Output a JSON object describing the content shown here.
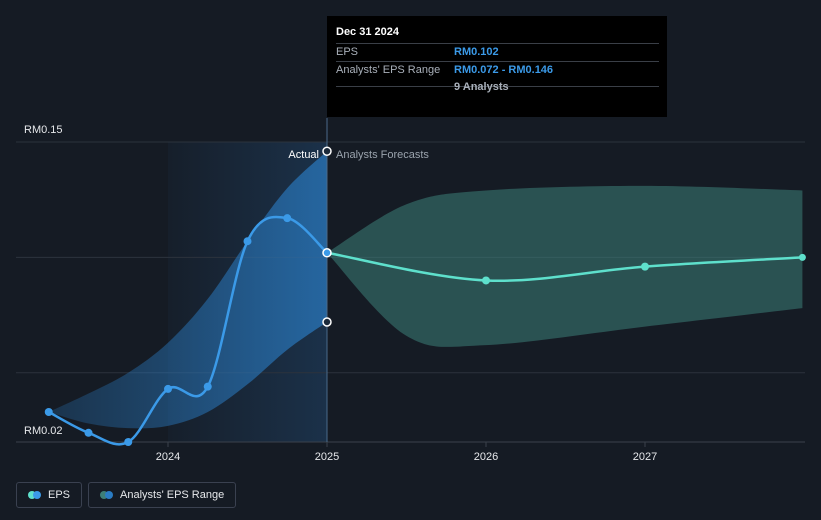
{
  "chart_data": {
    "type": "line",
    "currency": "RM",
    "y_axis": {
      "min": 0.02,
      "max": 0.15,
      "labels": [
        "RM0.15",
        "RM0.02"
      ]
    },
    "x_axis": {
      "ticks": [
        2024,
        2025,
        2026,
        2027
      ]
    },
    "section_labels": {
      "actual": "Actual",
      "forecast": "Analysts Forecasts"
    },
    "series": [
      {
        "name": "EPS",
        "color": "#3b9ae8",
        "points": [
          {
            "x": 2023.25,
            "y": 0.033
          },
          {
            "x": 2023.5,
            "y": 0.024
          },
          {
            "x": 2023.75,
            "y": 0.02
          },
          {
            "x": 2024.0,
            "y": 0.043
          },
          {
            "x": 2024.25,
            "y": 0.044
          },
          {
            "x": 2024.5,
            "y": 0.107
          },
          {
            "x": 2024.75,
            "y": 0.117
          },
          {
            "x": 2025.0,
            "y": 0.102
          }
        ]
      },
      {
        "name": "EPS Forecast",
        "color": "#5ee0cc",
        "points": [
          {
            "x": 2025.0,
            "y": 0.102
          },
          {
            "x": 2026.0,
            "y": 0.09
          },
          {
            "x": 2027.0,
            "y": 0.096
          },
          {
            "x": 2027.99,
            "y": 0.1
          }
        ]
      }
    ],
    "range_band_actual": {
      "name": "Analysts' EPS Range",
      "color": "#2a7cc4",
      "points": [
        {
          "x": 2023.25,
          "low": 0.033,
          "high": 0.033
        },
        {
          "x": 2023.5,
          "low": 0.028,
          "high": 0.041
        },
        {
          "x": 2023.75,
          "low": 0.026,
          "high": 0.05
        },
        {
          "x": 2024.0,
          "low": 0.027,
          "high": 0.063
        },
        {
          "x": 2024.25,
          "low": 0.033,
          "high": 0.082
        },
        {
          "x": 2024.5,
          "low": 0.045,
          "high": 0.107
        },
        {
          "x": 2024.75,
          "low": 0.06,
          "high": 0.13
        },
        {
          "x": 2025.0,
          "low": 0.072,
          "high": 0.146
        }
      ]
    },
    "range_band_forecast": {
      "name": "Analysts' EPS Range",
      "color": "#3d7f78",
      "points": [
        {
          "x": 2025.0,
          "low": 0.102,
          "high": 0.102
        },
        {
          "x": 2025.5,
          "low": 0.066,
          "high": 0.123
        },
        {
          "x": 2026.0,
          "low": 0.062,
          "high": 0.129
        },
        {
          "x": 2027.0,
          "low": 0.07,
          "high": 0.131
        },
        {
          "x": 2027.99,
          "low": 0.078,
          "high": 0.129
        }
      ]
    },
    "markers_at_current": [
      {
        "x": 2025.0,
        "y": 0.146
      },
      {
        "x": 2025.0,
        "y": 0.102
      },
      {
        "x": 2025.0,
        "y": 0.072
      }
    ]
  },
  "tooltip": {
    "date": "Dec 31 2024",
    "rows": [
      {
        "key": "EPS",
        "value": "RM0.102"
      },
      {
        "key": "Analysts' EPS Range",
        "value": "RM0.072 - RM0.146"
      }
    ],
    "analysts": "9 Analysts"
  },
  "legend": {
    "eps_label": "EPS",
    "range_label": "Analysts' EPS Range",
    "eps_colors": [
      "#5ee0cc",
      "#3b9ae8"
    ],
    "range_colors": [
      "#3d7f78",
      "#2a7cc4"
    ]
  }
}
